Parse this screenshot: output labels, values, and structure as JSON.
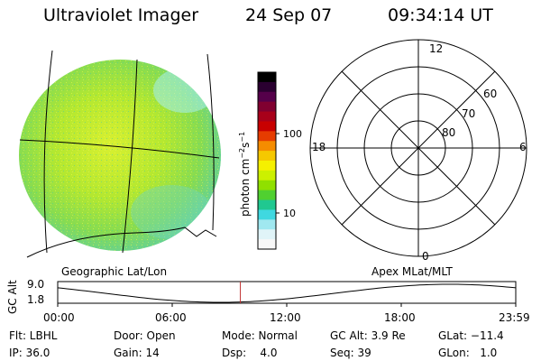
{
  "header": {
    "title": "Ultraviolet Imager",
    "date": "24 Sep 07",
    "time": "09:34:14 UT"
  },
  "image_panel": {
    "caption": "Geographic Lat/Lon"
  },
  "color_scale": {
    "unit_text": "photon cm",
    "unit_sup1": "−2",
    "unit_mid": "s",
    "unit_sup2": "−1",
    "labels": [
      "100",
      "10"
    ],
    "colors": [
      "#000000",
      "#2a0030",
      "#55004a",
      "#800030",
      "#a8001a",
      "#c80000",
      "#e63c00",
      "#f58c00",
      "#f5c800",
      "#f5f000",
      "#ccf000",
      "#90e000",
      "#50d030",
      "#20c890",
      "#40d8e0",
      "#a0e8f0",
      "#e0f4f8",
      "#f8f8f8"
    ]
  },
  "polar_plot": {
    "caption": "Apex MLat/MLT",
    "mlt_labels": {
      "top": "12",
      "right": "6",
      "bottom": "0",
      "left": "18"
    },
    "lat_labels": [
      "60",
      "70",
      "80"
    ]
  },
  "timeline": {
    "axis_label": "GC Alt",
    "y_labels": [
      "9.0",
      "1.8"
    ],
    "ticks": [
      "00:00",
      "06:00",
      "12:00",
      "18:00",
      "23:59"
    ],
    "marker_time_hours": 9.57
  },
  "status": {
    "flt": "Flt: LBHL",
    "ip": "IP: 36.0",
    "door": "Door: Open",
    "gain": "Gain: 14",
    "mode": "Mode: Normal",
    "dsp": "Dsp:    4.0",
    "gcalt": "GC Alt: 3.9 Re",
    "seq": "Seq: 39",
    "glat": "GLat: −11.4",
    "glon": "GLon:   1.0"
  }
}
